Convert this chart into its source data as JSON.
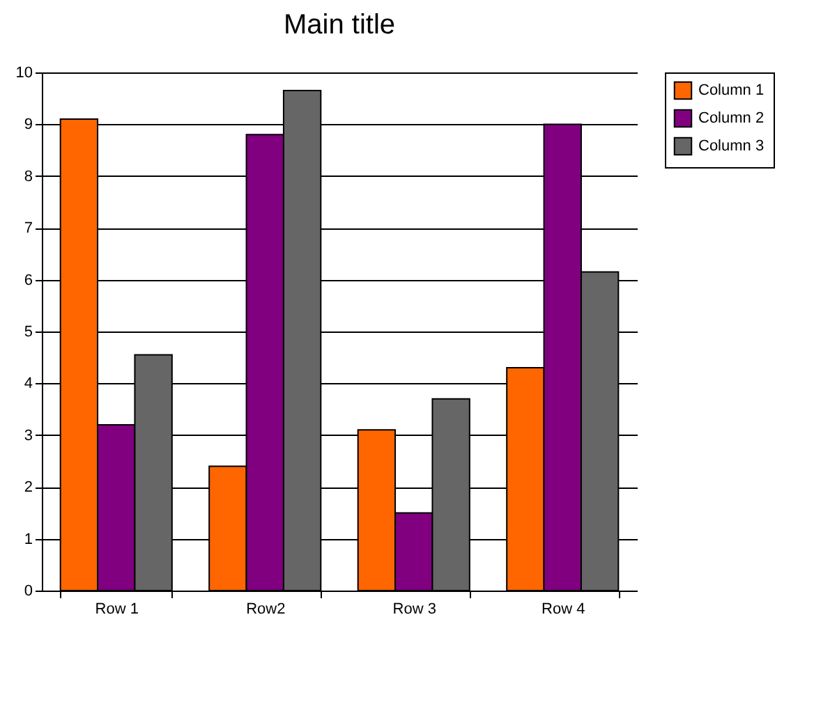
{
  "chart_data": {
    "type": "bar",
    "title": "Main title",
    "categories": [
      "Row 1",
      "Row2",
      "Row 3",
      "Row 4"
    ],
    "series": [
      {
        "name": "Column 1",
        "color": "#ff6600",
        "values": [
          9.1,
          2.4,
          3.1,
          4.3
        ]
      },
      {
        "name": "Column 2",
        "color": "#800080",
        "values": [
          3.2,
          8.8,
          1.5,
          9.0
        ]
      },
      {
        "name": "Column 3",
        "color": "#666666",
        "values": [
          4.55,
          9.65,
          3.7,
          6.15
        ]
      }
    ],
    "ylim": [
      0,
      10
    ],
    "yticks": [
      0,
      1,
      2,
      3,
      4,
      5,
      6,
      7,
      8,
      9,
      10
    ],
    "grid": "y",
    "legend": "right"
  }
}
